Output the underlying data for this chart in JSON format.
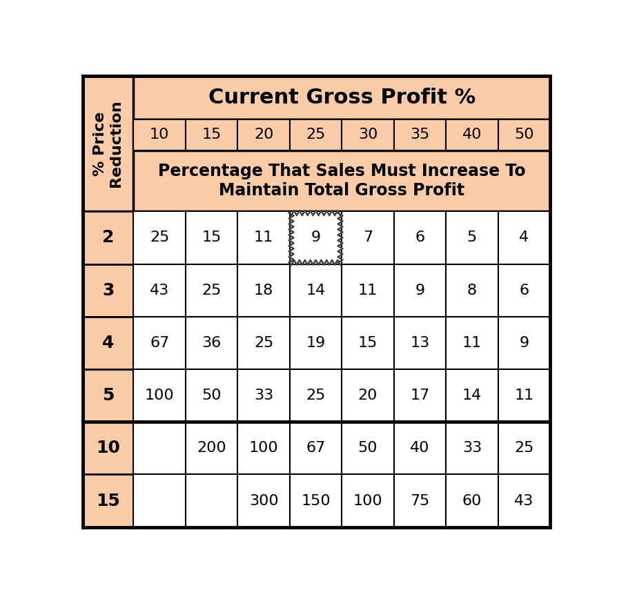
{
  "title_header": "Current Gross Profit %",
  "subtitle_header": "Percentage That Sales Must Increase To\nMaintain Total Gross Profit",
  "row_header_label": "% Price\nReduction",
  "col_headers": [
    10,
    15,
    20,
    25,
    30,
    35,
    40,
    50
  ],
  "row_labels": [
    2,
    3,
    4,
    5,
    10,
    15
  ],
  "table_data": [
    [
      25,
      15,
      11,
      9,
      7,
      6,
      5,
      4
    ],
    [
      43,
      25,
      18,
      14,
      11,
      9,
      8,
      6
    ],
    [
      67,
      36,
      25,
      19,
      15,
      13,
      11,
      9
    ],
    [
      100,
      50,
      33,
      25,
      20,
      17,
      14,
      11
    ],
    [
      "",
      200,
      100,
      67,
      50,
      40,
      33,
      25
    ],
    [
      "",
      "",
      300,
      150,
      100,
      75,
      60,
      43
    ]
  ],
  "header_bg": "#F9CBA7",
  "cell_bg_white": "#FFFFFF",
  "border_color": "#000000",
  "highlight_cell_row": 1,
  "highlight_cell_col": 3,
  "thick_border_after_row": 3
}
